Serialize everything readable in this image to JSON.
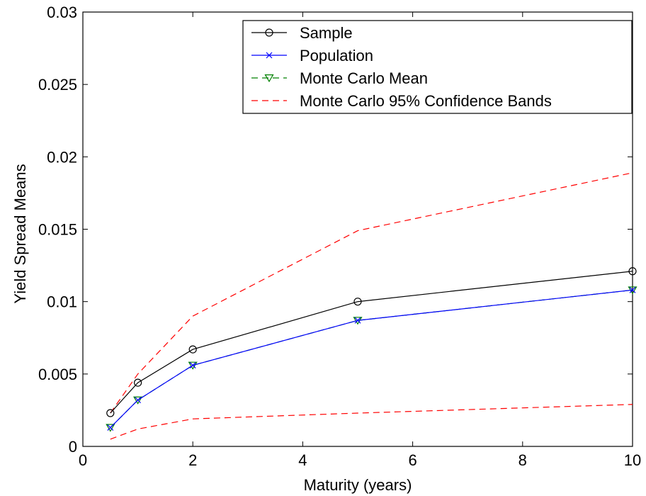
{
  "chart_data": {
    "type": "line",
    "title": "",
    "xlabel": "Maturity (years)",
    "ylabel": "Yield Spread Means",
    "xlim": [
      0,
      10
    ],
    "ylim": [
      0,
      0.03
    ],
    "xticks": [
      0,
      2,
      4,
      6,
      8,
      10
    ],
    "xtick_labels": [
      "0",
      "2",
      "4",
      "6",
      "8",
      "10"
    ],
    "yticks": [
      0,
      0.005,
      0.01,
      0.015,
      0.02,
      0.025,
      0.03
    ],
    "ytick_labels": [
      "0",
      "0.005",
      "0.01",
      "0.015",
      "0.02",
      "0.025",
      "0.03"
    ],
    "grid": false,
    "legend_position": "top-right",
    "x": [
      0.5,
      1,
      2,
      5,
      10
    ],
    "series": [
      {
        "name": "Sample",
        "values": [
          0.0023,
          0.0044,
          0.0067,
          0.01,
          0.0121
        ],
        "color": "#000000",
        "line": "solid",
        "marker": "circle"
      },
      {
        "name": "Population",
        "values": [
          0.0013,
          0.0032,
          0.0056,
          0.0087,
          0.0108
        ],
        "color": "#0000ff",
        "line": "solid",
        "marker": "x"
      },
      {
        "name": "Monte Carlo Mean",
        "values": [
          0.0013,
          0.0032,
          0.0056,
          0.0087,
          0.0108
        ],
        "color": "#008000",
        "line": "dashed",
        "marker": "triangle-down"
      },
      {
        "name": "Monte Carlo 95% Confidence Bands",
        "values": [
          0.0023,
          0.005,
          0.009,
          0.0149,
          0.0189
        ],
        "color": "#ff0000",
        "line": "dashed",
        "marker": "none"
      },
      {
        "name": "Monte Carlo 95% Confidence Bands",
        "values": [
          0.0005,
          0.0012,
          0.0019,
          0.0023,
          0.0029
        ],
        "color": "#ff0000",
        "line": "dashed",
        "marker": "none"
      }
    ]
  }
}
